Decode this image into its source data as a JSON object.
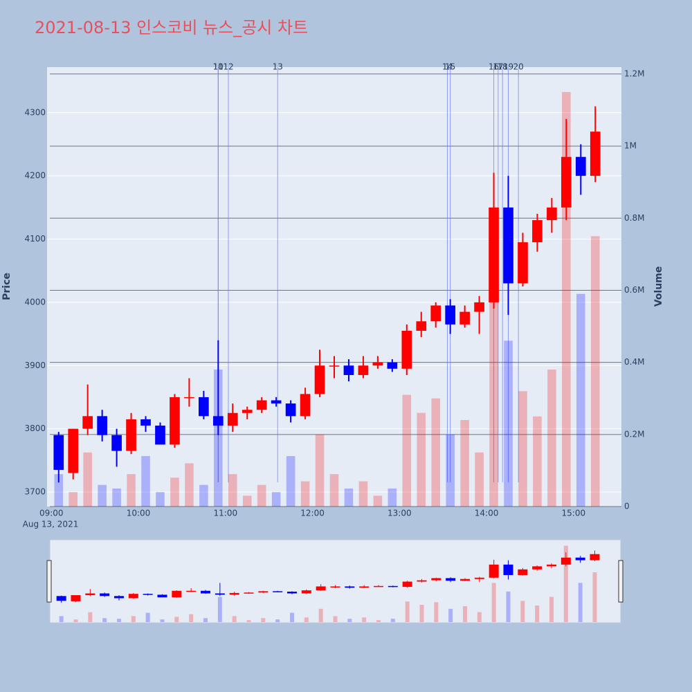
{
  "chart_data": {
    "type": "candlestick",
    "title": "2021-08-13 인스코비 뉴스_공시 차트",
    "y_label": "Price",
    "y2_label": "Volume",
    "x_date_label": "Aug 13, 2021",
    "x": [
      "09:00",
      "09:10",
      "09:20",
      "09:30",
      "09:40",
      "09:50",
      "10:00",
      "10:10",
      "10:20",
      "10:30",
      "10:40",
      "10:50",
      "11:00",
      "11:10",
      "11:20",
      "11:30",
      "11:40",
      "11:50",
      "12:00",
      "12:10",
      "12:20",
      "12:30",
      "12:40",
      "12:50",
      "13:00",
      "13:10",
      "13:20",
      "13:30",
      "13:40",
      "13:50",
      "14:00",
      "14:10",
      "14:20",
      "14:30",
      "14:40",
      "14:50",
      "15:00",
      "15:10"
    ],
    "open": [
      3790,
      3730,
      3800,
      3820,
      3790,
      3765,
      3815,
      3805,
      3775,
      3850,
      3850,
      3820,
      3805,
      3825,
      3830,
      3845,
      3840,
      3820,
      3855,
      3900,
      3900,
      3885,
      3900,
      3905,
      3895,
      3955,
      3970,
      3995,
      3965,
      3985,
      4000,
      4150,
      4030,
      4095,
      4130,
      4150,
      4230,
      4200
    ],
    "high": [
      3795,
      3800,
      3870,
      3830,
      3800,
      3825,
      3820,
      3810,
      3855,
      3880,
      3860,
      3940,
      3840,
      3835,
      3850,
      3850,
      3845,
      3865,
      3925,
      3915,
      3910,
      3915,
      3915,
      3910,
      3965,
      3985,
      4000,
      4005,
      3995,
      4010,
      4205,
      4200,
      4110,
      4140,
      4165,
      4290,
      4250,
      4310
    ],
    "low": [
      3715,
      3720,
      3790,
      3780,
      3740,
      3760,
      3795,
      3780,
      3770,
      3835,
      3815,
      3790,
      3795,
      3815,
      3825,
      3835,
      3810,
      3815,
      3850,
      3880,
      3875,
      3880,
      3895,
      3890,
      3885,
      3945,
      3960,
      3950,
      3960,
      3950,
      3990,
      3980,
      4025,
      4080,
      4110,
      4130,
      4170,
      4190
    ],
    "close": [
      3735,
      3800,
      3820,
      3790,
      3765,
      3815,
      3805,
      3775,
      3850,
      3850,
      3820,
      3805,
      3825,
      3830,
      3845,
      3840,
      3820,
      3855,
      3900,
      3900,
      3885,
      3900,
      3905,
      3895,
      3955,
      3970,
      3995,
      3965,
      3985,
      4000,
      4150,
      4030,
      4095,
      4130,
      4150,
      4230,
      4200,
      4270
    ],
    "volume": [
      90000,
      40000,
      150000,
      60000,
      50000,
      90000,
      140000,
      40000,
      80000,
      120000,
      60000,
      380000,
      90000,
      30000,
      60000,
      40000,
      140000,
      70000,
      200000,
      90000,
      50000,
      70000,
      30000,
      50000,
      310000,
      260000,
      300000,
      200000,
      240000,
      150000,
      590000,
      460000,
      320000,
      250000,
      380000,
      1150000,
      590000,
      750000
    ],
    "xlim": [
      "08:57",
      "15:33"
    ],
    "xticks": [
      "09:00",
      "10:00",
      "11:00",
      "12:00",
      "13:00",
      "14:00",
      "15:00"
    ],
    "ylim": [
      3677,
      4372
    ],
    "yticks": [
      3700,
      3800,
      3900,
      4000,
      4100,
      4200,
      4300
    ],
    "y2lim": [
      0,
      1219000
    ],
    "y2ticks": [
      0,
      {
        "value": 200000,
        "label": "0.2M"
      },
      {
        "value": 400000,
        "label": "0.4M"
      },
      {
        "value": 600000,
        "label": "0.6M"
      },
      {
        "value": 800000,
        "label": "0.8M"
      },
      {
        "value": 1000000,
        "label": "1M"
      },
      {
        "value": 1200000,
        "label": "1.2M"
      }
    ],
    "increasing_color": "#ff0000",
    "decreasing_color": "#0000ff",
    "news_color": "#6677ff",
    "news_markers": [
      {
        "label": "10",
        "x": "10:55"
      },
      {
        "label": "11",
        "x": "10:55"
      },
      {
        "label": "12",
        "x": "11:02"
      },
      {
        "label": "13",
        "x": "11:36"
      },
      {
        "label": "14",
        "x": "13:33"
      },
      {
        "label": "15",
        "x": "13:35"
      },
      {
        "label": "16",
        "x": "14:05"
      },
      {
        "label": "17",
        "x": "14:08"
      },
      {
        "label": "18",
        "x": "14:11"
      },
      {
        "label": "19",
        "x": "14:15"
      },
      {
        "label": "20",
        "x": "14:22"
      }
    ],
    "grid": true
  }
}
